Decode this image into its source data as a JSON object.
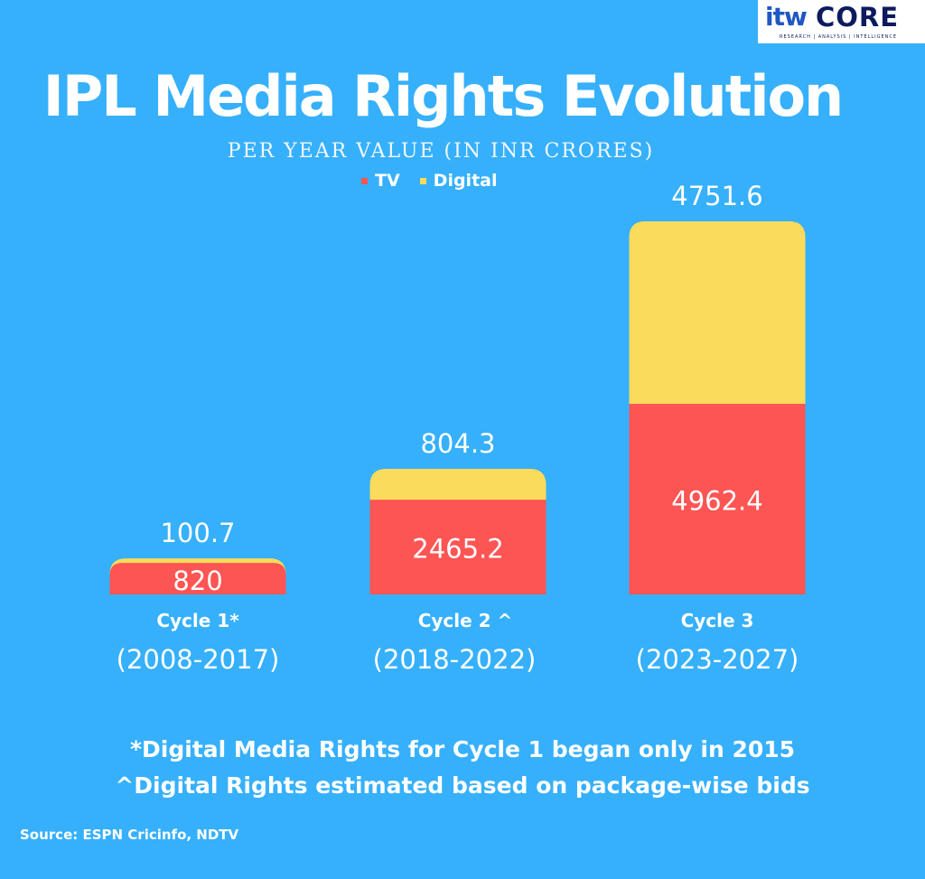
{
  "logo": {
    "text_itw": "itw",
    "text_core": "CORE",
    "tagline": "RESEARCH | ANALYSIS | INTELLIGENCE"
  },
  "colors": {
    "background": "#36b0fb",
    "tv": "#fd5554",
    "digital": "#fbdb5b"
  },
  "chart_data": {
    "type": "bar",
    "stacked": true,
    "title": "IPL Media Rights Evolution",
    "subtitle": "PER YEAR VALUE (IN INR CRORES)",
    "legend_position": "top-center",
    "categories": [
      "Cycle 1*",
      "Cycle 2 ^",
      "Cycle 3"
    ],
    "category_periods": [
      "(2008-2017)",
      "(2018-2022)",
      "(2023-2027)"
    ],
    "series": [
      {
        "name": "TV",
        "color": "#fd5554",
        "values": [
          820,
          2465.2,
          4962.4
        ],
        "labels": [
          "820",
          "2465.2",
          "4962.4"
        ]
      },
      {
        "name": "Digital",
        "color": "#fbdb5b",
        "values": [
          100.7,
          804.3,
          4751.6
        ],
        "labels": [
          "100.7",
          "804.3",
          "4751.6"
        ]
      }
    ]
  },
  "footnotes": [
    "*Digital Media Rights for Cycle 1 began only in 2015",
    "^Digital Rights estimated based on package-wise bids"
  ],
  "source": "Source: ESPN Cricinfo, NDTV"
}
